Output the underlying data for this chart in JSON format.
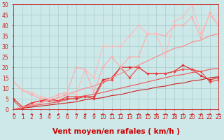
{
  "background_color": "#cce8e8",
  "grid_color": "#aacccc",
  "x_values": [
    0,
    1,
    2,
    3,
    4,
    5,
    6,
    7,
    8,
    9,
    10,
    11,
    12,
    13,
    14,
    15,
    16,
    17,
    18,
    19,
    20,
    21,
    22,
    23
  ],
  "series": [
    {
      "color": "#dd2222",
      "linewidth": 0.8,
      "marker": "D",
      "markersize": 1.8,
      "y": [
        5,
        1,
        3,
        4,
        5,
        4,
        5,
        5,
        6,
        6,
        14,
        15,
        20,
        20,
        20,
        17,
        17,
        17,
        18,
        21,
        19,
        16,
        14,
        15
      ]
    },
    {
      "color": "#ee4444",
      "linewidth": 0.8,
      "marker": "D",
      "markersize": 1.8,
      "y": [
        4,
        0,
        3,
        4,
        4,
        4,
        6,
        6,
        6,
        5,
        13,
        14,
        20,
        15,
        20,
        17,
        17,
        17,
        18,
        19,
        19,
        18,
        13,
        14
      ]
    },
    {
      "color": "#cc2222",
      "linewidth": 0.8,
      "marker": null,
      "markersize": 0,
      "y": [
        0,
        0.5,
        1,
        1.5,
        2,
        2.5,
        3,
        3.5,
        4.5,
        5,
        5.5,
        6.5,
        7,
        8,
        9,
        9.5,
        10.5,
        11,
        12,
        12.5,
        13.5,
        14,
        15,
        15.5
      ]
    },
    {
      "color": "#ee5555",
      "linewidth": 0.8,
      "marker": null,
      "markersize": 0,
      "y": [
        0,
        0.8,
        1.6,
        2.2,
        2.8,
        3.5,
        4.5,
        5.5,
        6.5,
        7,
        8,
        9,
        10,
        11,
        12,
        13,
        14,
        15,
        16,
        16.5,
        17.5,
        18,
        19,
        19.5
      ]
    },
    {
      "color": "#ff8888",
      "linewidth": 0.8,
      "marker": null,
      "markersize": 0,
      "y": [
        0,
        1,
        2,
        3,
        4.5,
        5.5,
        7,
        8.5,
        10,
        11,
        13,
        15,
        17,
        19,
        21,
        23,
        25,
        27,
        29,
        30,
        32,
        33,
        35,
        36
      ]
    },
    {
      "color": "#ffaaaa",
      "linewidth": 0.8,
      "marker": "D",
      "markersize": 1.8,
      "y": [
        13,
        9,
        7,
        5,
        5,
        7,
        8,
        20,
        19,
        8,
        20,
        25,
        20,
        25,
        25,
        36,
        36,
        35,
        40,
        40,
        44,
        34,
        46,
        40
      ]
    },
    {
      "color": "#ffbbbb",
      "linewidth": 0.8,
      "marker": "D",
      "markersize": 1.8,
      "y": [
        13,
        9,
        8,
        6,
        5,
        5,
        8,
        7,
        19,
        15,
        30,
        30,
        30,
        35,
        40,
        36,
        36,
        25,
        42,
        44,
        50,
        36,
        45,
        40
      ]
    }
  ],
  "xlim": [
    0,
    23
  ],
  "ylim": [
    0,
    50
  ],
  "yticks": [
    0,
    5,
    10,
    15,
    20,
    25,
    30,
    35,
    40,
    45,
    50
  ],
  "xticks": [
    0,
    1,
    2,
    3,
    4,
    5,
    6,
    7,
    8,
    9,
    10,
    11,
    12,
    13,
    14,
    15,
    16,
    17,
    18,
    19,
    20,
    21,
    22,
    23
  ],
  "xlabel": "Vent moyen/en rafales ( km/h )",
  "xlabel_color": "#cc0000",
  "xlabel_fontsize": 7.5,
  "tick_fontsize": 5.5,
  "tick_color": "#cc2222",
  "arrow_color": "#cc2222"
}
